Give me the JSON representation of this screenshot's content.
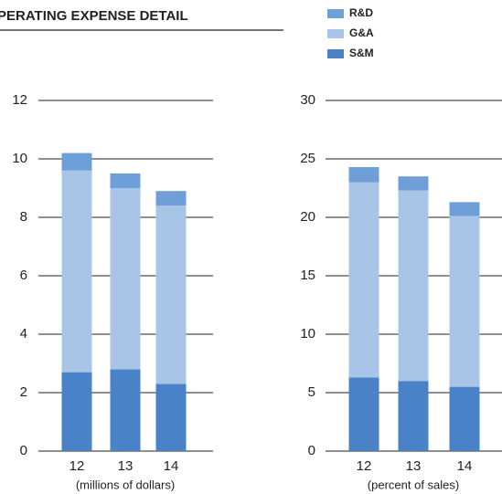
{
  "chart_data": [
    {
      "type": "bar",
      "stacked": true,
      "title": "PERATING EXPENSE DETAIL",
      "xlabel": "(millions of dollars)",
      "categories": [
        "12",
        "13",
        "14"
      ],
      "series": [
        {
          "name": "S&M",
          "color": "#4a82c8",
          "values": [
            2.7,
            2.8,
            2.3
          ]
        },
        {
          "name": "G&A",
          "color": "#a8c4e6",
          "values": [
            6.9,
            6.2,
            6.1
          ]
        },
        {
          "name": "R&D",
          "color": "#6f9fd8",
          "values": [
            0.6,
            0.5,
            0.5
          ]
        }
      ],
      "ylim": [
        0,
        12
      ],
      "yticks": [
        0,
        2,
        4,
        6,
        8,
        10,
        12
      ],
      "grid": true
    },
    {
      "type": "bar",
      "stacked": true,
      "xlabel": "(percent of sales)",
      "categories": [
        "12",
        "13",
        "14"
      ],
      "series": [
        {
          "color": "#4a82c8",
          "values": [
            6.3,
            6.0,
            5.5
          ]
        },
        {
          "color": "#a8c4e6",
          "values": [
            16.7,
            16.3,
            14.6
          ]
        },
        {
          "color": "#6f9fd8",
          "values": [
            1.3,
            1.2,
            1.2
          ]
        }
      ],
      "ylim": [
        0,
        30
      ],
      "yticks": [
        0,
        5,
        10,
        15,
        20,
        25,
        30
      ],
      "grid": true
    }
  ]
}
